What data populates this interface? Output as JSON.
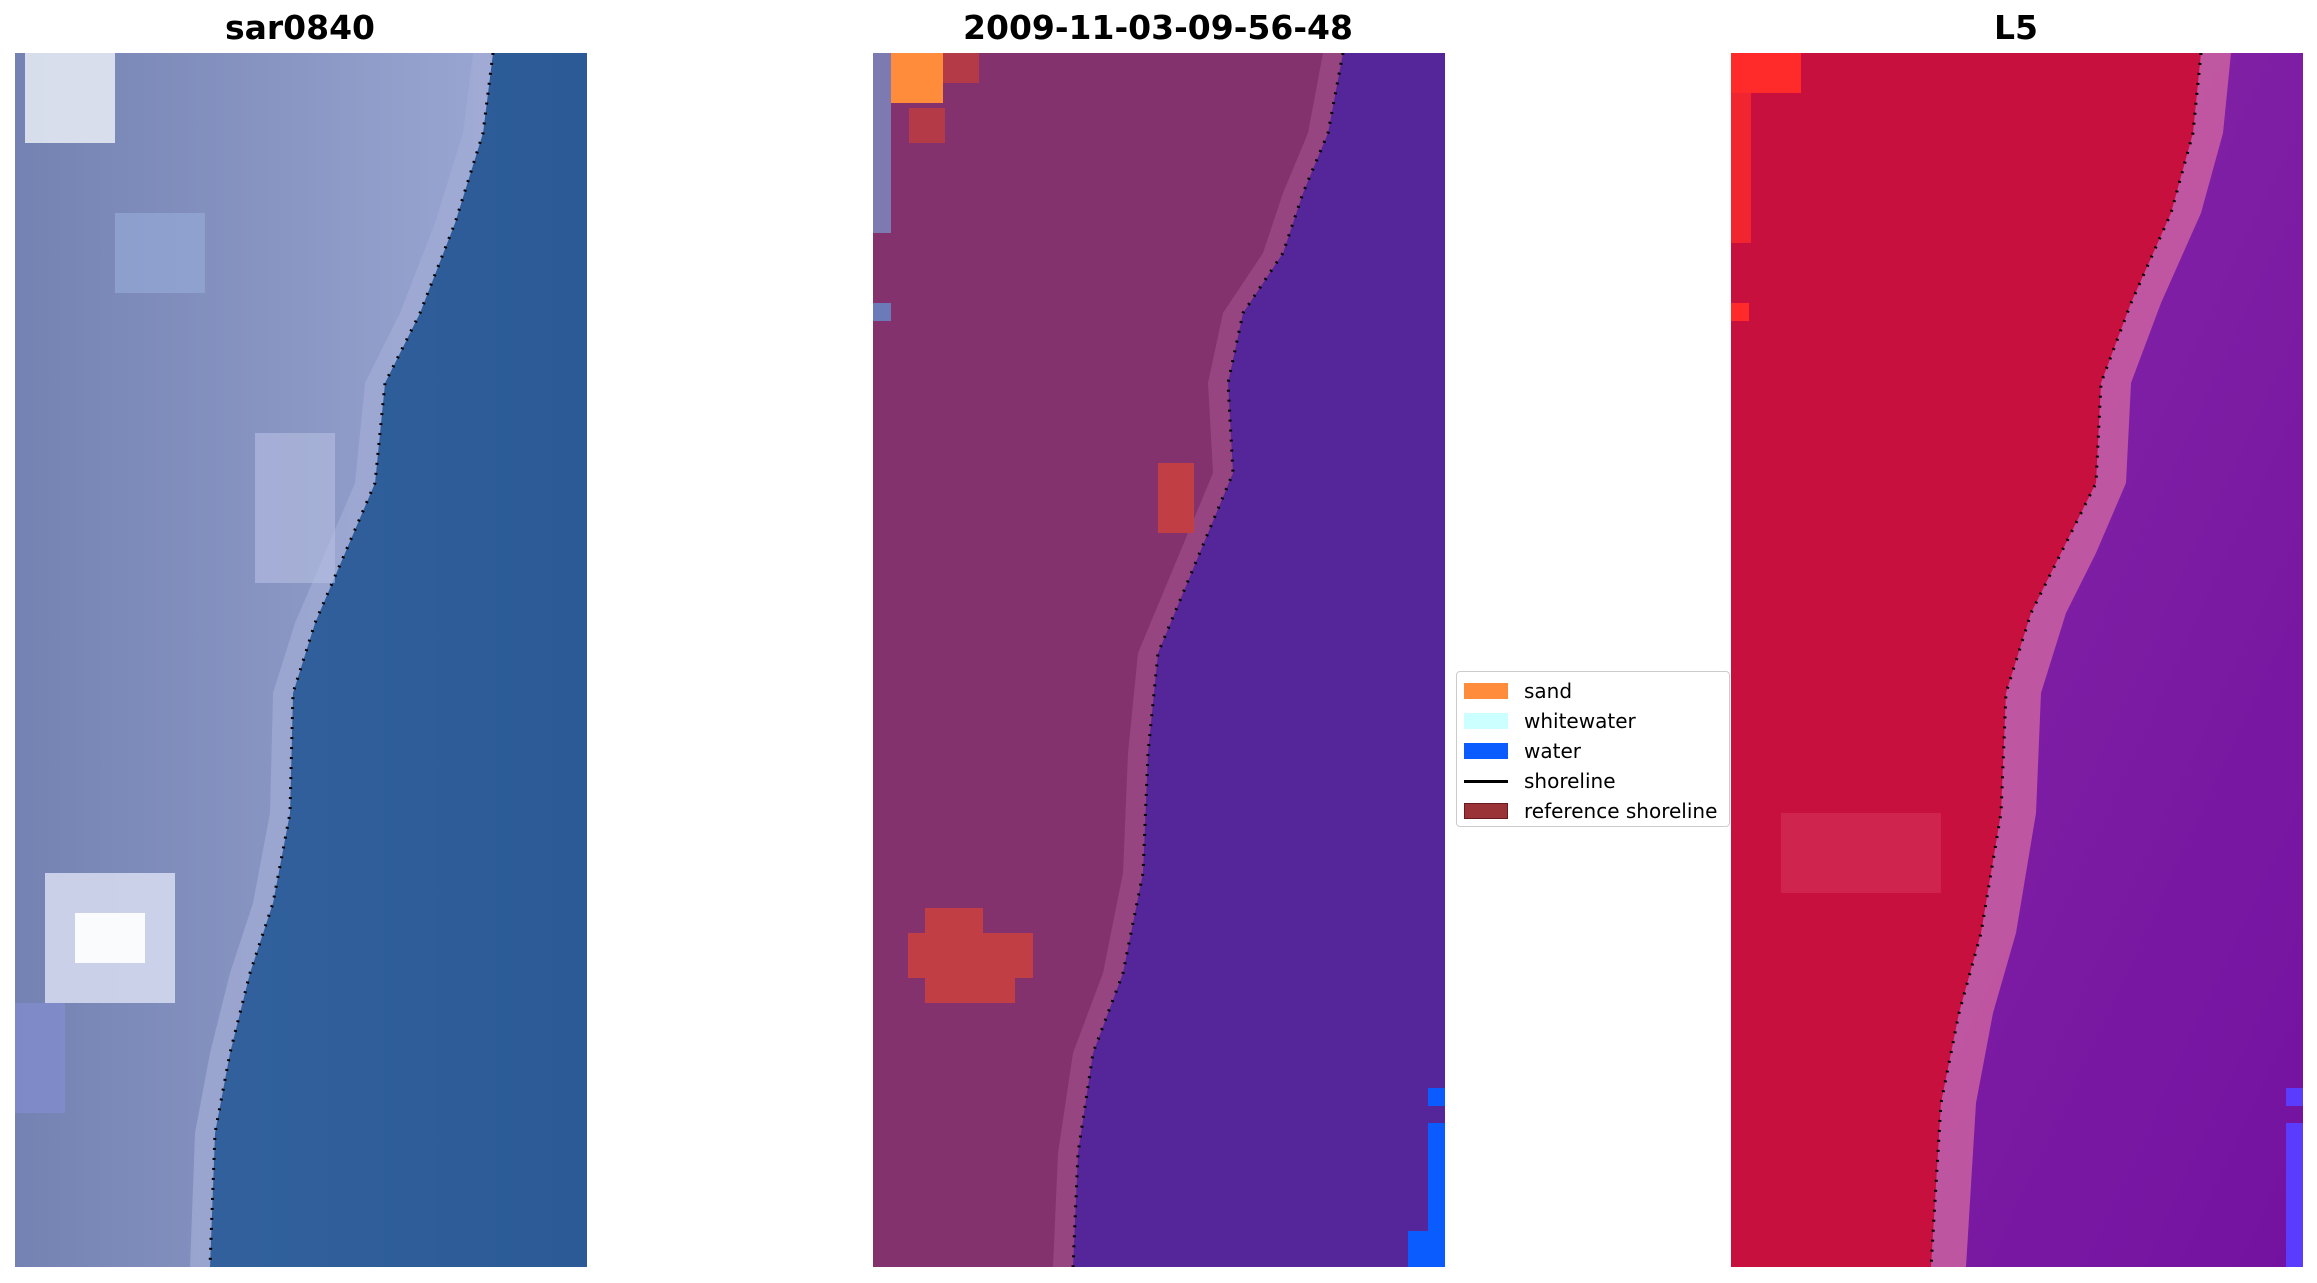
{
  "panels": [
    {
      "title": "sar0840"
    },
    {
      "title": "2009-11-03-09-56-48"
    },
    {
      "title": "L5"
    }
  ],
  "legend": {
    "items": [
      {
        "label": "sand",
        "color": "#ff8c3b",
        "kind": "patch"
      },
      {
        "label": "whitewater",
        "color": "#ccffff",
        "kind": "patch"
      },
      {
        "label": "water",
        "color": "#0a5cff",
        "kind": "patch"
      },
      {
        "label": "shoreline",
        "color": "#000000",
        "kind": "line"
      },
      {
        "label": "reference shoreline",
        "color": "#9a3338",
        "kind": "patch"
      }
    ]
  },
  "colors": {
    "rgb_land": "#7d8ab5",
    "rgb_water": "#2a5a98",
    "classified_land": "#83326e",
    "classified_water": "#55259a",
    "l5_land": "#c8103e",
    "l5_water": "#8a26a6"
  }
}
